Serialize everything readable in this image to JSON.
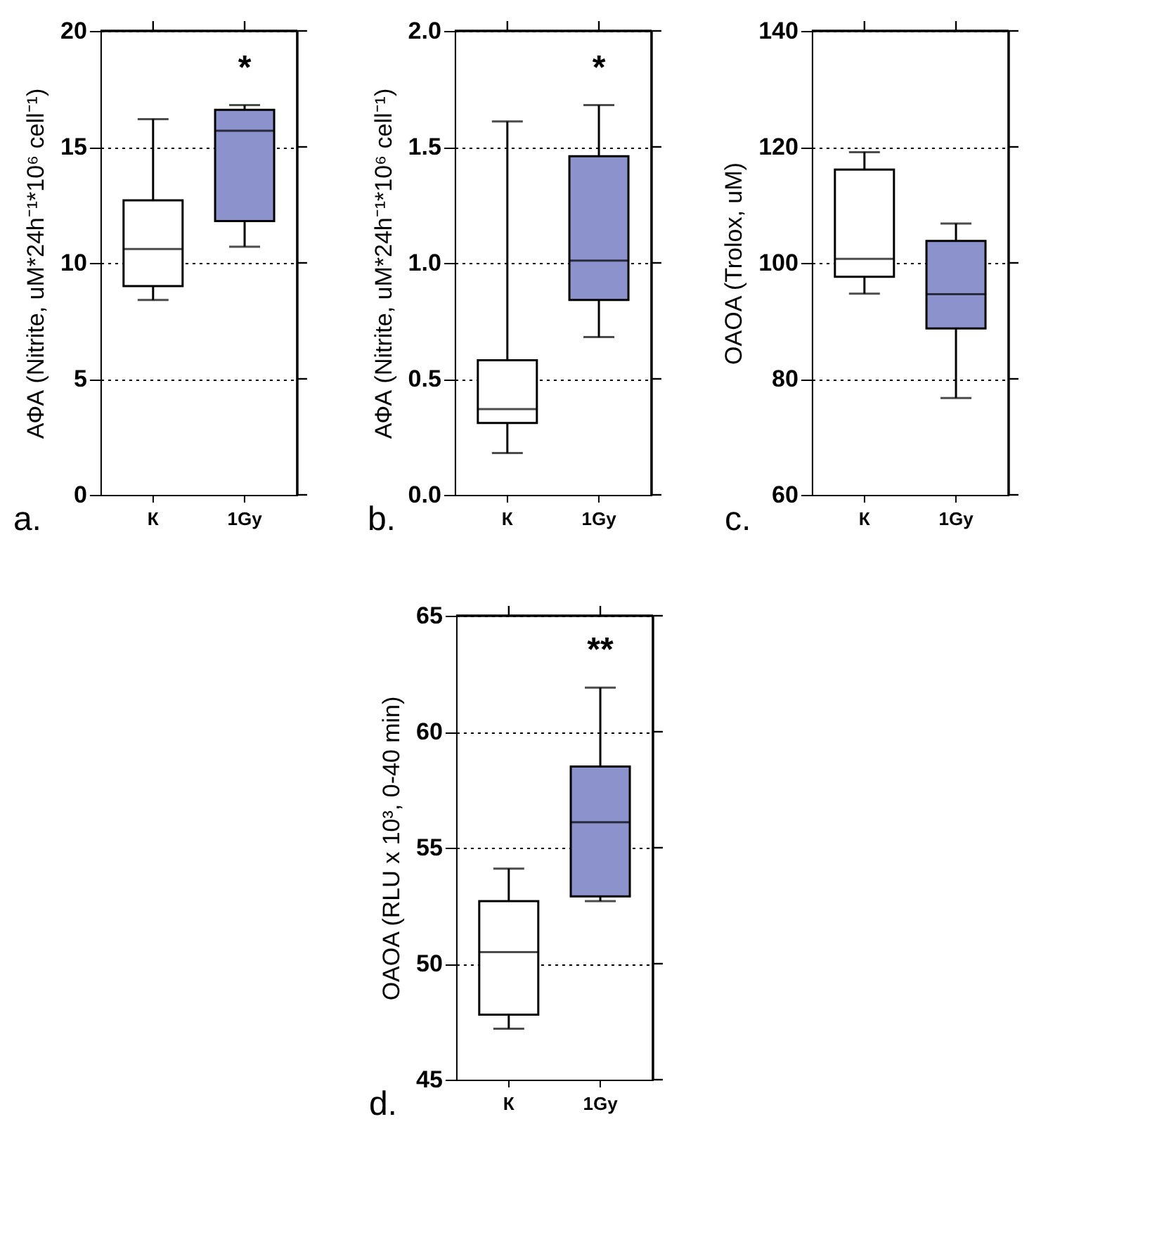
{
  "chart_data": [
    {
      "type": "box",
      "categories": [
        "К",
        "1Gy"
      ],
      "colors": [
        "#ffffff",
        "#8b92cc"
      ],
      "ylabel": "АФА (Nitrite, uM*24h⁻¹*10⁶ cell⁻¹)",
      "ylim": [
        0,
        20
      ],
      "yticks": [
        0,
        5,
        10,
        15,
        20
      ],
      "grid": "y",
      "boxes": [
        {
          "low": 8.4,
          "q1": 9.0,
          "median": 10.6,
          "q3": 12.7,
          "high": 16.2
        },
        {
          "low": 10.7,
          "q1": 11.8,
          "median": 15.7,
          "q3": 16.6,
          "high": 16.8
        }
      ],
      "annotations": [
        "a.",
        "*"
      ]
    },
    {
      "type": "box",
      "categories": [
        "К",
        "1Gy"
      ],
      "colors": [
        "#ffffff",
        "#8b92cc"
      ],
      "ylabel": "АФА (Nitrite, uM*24h⁻¹*10⁶ cell⁻¹)",
      "ylim": [
        0,
        2
      ],
      "yticks": [
        {
          "value": 0,
          "label": "0.0"
        },
        0.5,
        {
          "value": 1,
          "label": "1.0"
        },
        1.5,
        {
          "value": 2,
          "label": "2.0"
        }
      ],
      "grid": "y",
      "boxes": [
        {
          "low": 0.18,
          "q1": 0.31,
          "median": 0.37,
          "q3": 0.58,
          "high": 1.61
        },
        {
          "low": 0.68,
          "q1": 0.84,
          "median": 1.01,
          "q3": 1.46,
          "high": 1.68
        }
      ],
      "annotations": [
        "b.",
        "*"
      ]
    },
    {
      "type": "box",
      "categories": [
        "К",
        "1Gy"
      ],
      "colors": [
        "#ffffff",
        "#8b92cc"
      ],
      "ylabel": "OAOA (Trolox, uM)",
      "ylim": [
        60,
        140
      ],
      "yticks": [
        60,
        80,
        100,
        120,
        140
      ],
      "grid": "y",
      "boxes": [
        {
          "low": 94.7,
          "q1": 97.6,
          "median": 100.7,
          "q3": 116.1,
          "high": 119.1
        },
        {
          "low": 76.7,
          "q1": 88.7,
          "median": 94.6,
          "q3": 103.8,
          "high": 106.8
        }
      ],
      "annotations": [
        "c."
      ]
    },
    {
      "type": "box",
      "categories": [
        "К",
        "1Gy"
      ],
      "colors": [
        "#ffffff",
        "#8b92cc"
      ],
      "ylabel": "OAOA (RLU x 10³, 0-40 min)",
      "ylim": [
        45,
        65
      ],
      "yticks": [
        45,
        50,
        55,
        60,
        65
      ],
      "grid": "y",
      "boxes": [
        {
          "low": 47.2,
          "q1": 47.8,
          "median": 50.5,
          "q3": 52.7,
          "high": 54.1
        },
        {
          "low": 52.7,
          "q1": 52.9,
          "median": 56.1,
          "q3": 58.5,
          "high": 61.9
        }
      ],
      "annotations": [
        "d.",
        "**"
      ]
    }
  ]
}
